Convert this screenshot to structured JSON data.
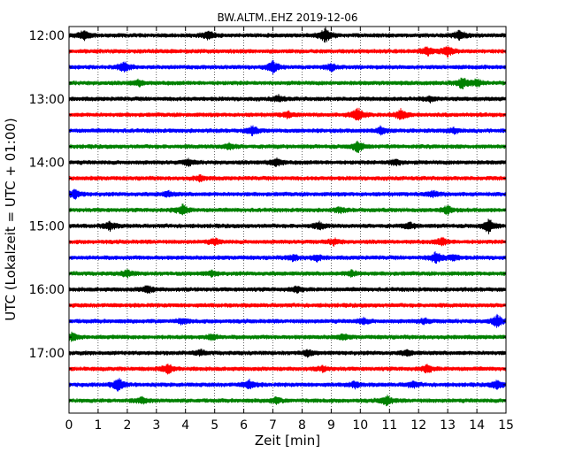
{
  "chart_data": {
    "type": "line",
    "title": "BW.ALTM..EHZ 2019-12-06",
    "xlabel": "Zeit  [min]",
    "ylabel": "UTC (Lokalzeit = UTC + 01:00)",
    "xlim": [
      0,
      15
    ],
    "x_ticks": [
      "0",
      "1",
      "2",
      "3",
      "4",
      "5",
      "6",
      "7",
      "8",
      "9",
      "10",
      "11",
      "12",
      "13",
      "14",
      "15"
    ],
    "y_tick_labels": [
      "12:00",
      "13:00",
      "14:00",
      "15:00",
      "16:00",
      "17:00"
    ],
    "grid": "vertical dotted",
    "series_colors": [
      "#000000",
      "#ff0000",
      "#0000ff",
      "#008000"
    ],
    "traces": [
      {
        "start": "12:00",
        "color": "#000000",
        "bursts": [
          [
            0.5,
            1.0
          ],
          [
            4.8,
            0.8
          ],
          [
            8.8,
            1.6
          ],
          [
            13.4,
            1.0
          ]
        ]
      },
      {
        "start": "12:15",
        "color": "#ff0000",
        "bursts": [
          [
            12.3,
            0.9
          ],
          [
            13.0,
            1.1
          ]
        ]
      },
      {
        "start": "12:30",
        "color": "#0000ff",
        "bursts": [
          [
            1.9,
            1.1
          ],
          [
            7.0,
            1.2
          ],
          [
            9.0,
            0.7
          ]
        ]
      },
      {
        "start": "12:45",
        "color": "#008000",
        "bursts": [
          [
            2.4,
            0.6
          ],
          [
            13.5,
            1.1
          ],
          [
            14.0,
            0.7
          ]
        ]
      },
      {
        "start": "13:00",
        "color": "#000000",
        "bursts": [
          [
            7.2,
            0.6
          ],
          [
            12.4,
            0.5
          ]
        ]
      },
      {
        "start": "13:15",
        "color": "#ff0000",
        "bursts": [
          [
            9.9,
            1.5
          ],
          [
            11.4,
            1.1
          ],
          [
            7.5,
            0.6
          ]
        ]
      },
      {
        "start": "13:30",
        "color": "#0000ff",
        "bursts": [
          [
            6.3,
            0.9
          ],
          [
            10.7,
            0.7
          ],
          [
            13.2,
            0.5
          ]
        ]
      },
      {
        "start": "13:45",
        "color": "#008000",
        "bursts": [
          [
            9.9,
            1.2
          ],
          [
            5.5,
            0.6
          ]
        ]
      },
      {
        "start": "14:00",
        "color": "#000000",
        "bursts": [
          [
            7.1,
            0.9
          ],
          [
            4.1,
            0.6
          ],
          [
            11.2,
            0.6
          ]
        ]
      },
      {
        "start": "14:15",
        "color": "#ff0000",
        "bursts": [
          [
            4.5,
            0.5
          ]
        ]
      },
      {
        "start": "14:30",
        "color": "#0000ff",
        "bursts": [
          [
            0.2,
            0.9
          ],
          [
            3.4,
            0.5
          ],
          [
            12.5,
            0.6
          ]
        ]
      },
      {
        "start": "14:45",
        "color": "#008000",
        "bursts": [
          [
            3.9,
            1.0
          ],
          [
            13.0,
            0.8
          ],
          [
            9.3,
            0.5
          ]
        ]
      },
      {
        "start": "15:00",
        "color": "#000000",
        "bursts": [
          [
            1.4,
            0.9
          ],
          [
            14.4,
            1.4
          ],
          [
            8.6,
            0.7
          ],
          [
            11.7,
            0.6
          ]
        ]
      },
      {
        "start": "15:15",
        "color": "#ff0000",
        "bursts": [
          [
            12.8,
            0.8
          ],
          [
            5.0,
            0.6
          ],
          [
            9.1,
            0.6
          ]
        ]
      },
      {
        "start": "15:30",
        "color": "#0000ff",
        "bursts": [
          [
            12.6,
            1.2
          ],
          [
            7.7,
            0.6
          ],
          [
            8.5,
            0.6
          ],
          [
            13.2,
            0.6
          ]
        ]
      },
      {
        "start": "15:45",
        "color": "#008000",
        "bursts": [
          [
            2.0,
            0.7
          ],
          [
            9.7,
            0.6
          ],
          [
            4.9,
            0.5
          ]
        ]
      },
      {
        "start": "16:00",
        "color": "#000000",
        "bursts": [
          [
            2.7,
            0.8
          ],
          [
            7.8,
            0.5
          ]
        ]
      },
      {
        "start": "16:15",
        "color": "#ff0000",
        "bursts": []
      },
      {
        "start": "16:30",
        "color": "#0000ff",
        "bursts": [
          [
            14.7,
            1.2
          ],
          [
            10.1,
            0.6
          ],
          [
            3.9,
            0.5
          ],
          [
            12.2,
            0.5
          ]
        ]
      },
      {
        "start": "16:45",
        "color": "#008000",
        "bursts": [
          [
            0.1,
            0.8
          ],
          [
            4.9,
            0.6
          ],
          [
            9.4,
            0.5
          ]
        ]
      },
      {
        "start": "17:00",
        "color": "#000000",
        "bursts": [
          [
            8.2,
            0.6
          ],
          [
            4.5,
            0.5
          ],
          [
            11.6,
            0.5
          ]
        ]
      },
      {
        "start": "17:15",
        "color": "#ff0000",
        "bursts": [
          [
            3.4,
            1.0
          ],
          [
            12.3,
            0.7
          ],
          [
            8.7,
            0.5
          ]
        ]
      },
      {
        "start": "17:30",
        "color": "#0000ff",
        "bursts": [
          [
            1.7,
            1.4
          ],
          [
            6.2,
            0.9
          ],
          [
            14.7,
            0.9
          ],
          [
            9.8,
            0.6
          ],
          [
            11.8,
            0.6
          ]
        ]
      },
      {
        "start": "17:45",
        "color": "#008000",
        "bursts": [
          [
            10.9,
            1.0
          ],
          [
            2.5,
            0.6
          ],
          [
            7.1,
            0.6
          ]
        ]
      }
    ]
  }
}
